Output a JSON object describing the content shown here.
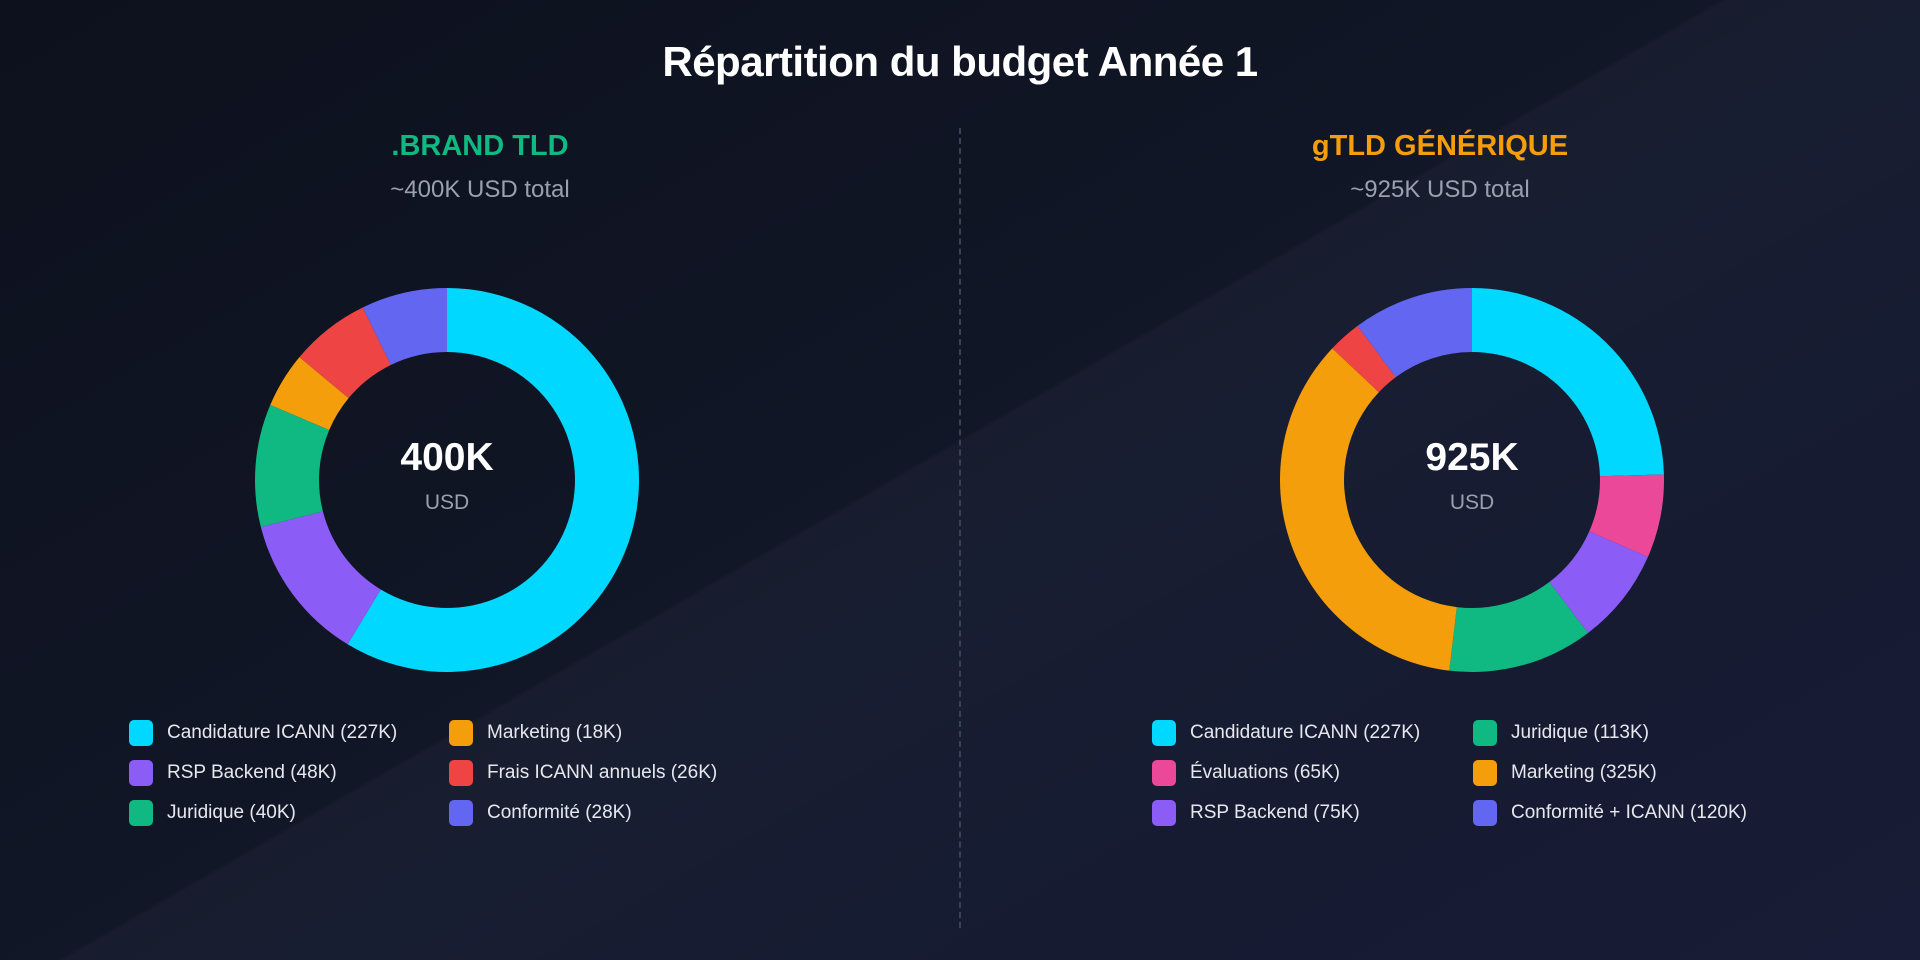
{
  "title": "Répartition du budget Année 1",
  "chart_data": [
    {
      "type": "pie",
      "variant": "donut",
      "title": ".BRAND TLD",
      "subtitle": "~400K USD total",
      "title_color": "#10b981",
      "center_value": "400K",
      "center_unit": "USD",
      "slices": [
        {
          "name": "Candidature ICANN",
          "value": 227,
          "color": "#00d8ff"
        },
        {
          "name": "RSP Backend",
          "value": 48,
          "color": "#8b5cf6"
        },
        {
          "name": "Juridique",
          "value": 40,
          "color": "#10b981"
        },
        {
          "name": "Marketing",
          "value": 18,
          "color": "#f59e0b"
        },
        {
          "name": "Frais ICANN annuels",
          "value": 26,
          "color": "#ef4444"
        },
        {
          "name": "Conformité",
          "value": 28,
          "color": "#6366f1"
        }
      ],
      "legend": [
        {
          "label": "Candidature ICANN (227K)",
          "color": "#00d8ff"
        },
        {
          "label": "RSP Backend (48K)",
          "color": "#8b5cf6"
        },
        {
          "label": "Juridique (40K)",
          "color": "#10b981"
        },
        {
          "label": "Marketing (18K)",
          "color": "#f59e0b"
        },
        {
          "label": "Frais ICANN annuels (26K)",
          "color": "#ef4444"
        },
        {
          "label": "Conformité (28K)",
          "color": "#6366f1"
        }
      ]
    },
    {
      "type": "pie",
      "variant": "donut",
      "title": "gTLD GÉNÉRIQUE",
      "subtitle": "~925K USD total",
      "title_color": "#f59e0b",
      "center_value": "925K",
      "center_unit": "USD",
      "slices": [
        {
          "name": "Candidature ICANN",
          "value": 227,
          "color": "#00d8ff"
        },
        {
          "name": "Évaluations",
          "value": 65,
          "color": "#ec4899"
        },
        {
          "name": "RSP Backend",
          "value": 75,
          "color": "#8b5cf6"
        },
        {
          "name": "Juridique",
          "value": 113,
          "color": "#10b981"
        },
        {
          "name": "Marketing",
          "value": 325,
          "color": "#f59e0b"
        },
        {
          "name": "",
          "value": 26,
          "color": "#ef4444"
        },
        {
          "name": "Conformité + ICANN",
          "value": 94,
          "color": "#6366f1"
        }
      ],
      "legend": [
        {
          "label": "Candidature ICANN (227K)",
          "color": "#00d8ff"
        },
        {
          "label": "Évaluations (65K)",
          "color": "#ec4899"
        },
        {
          "label": "RSP Backend (75K)",
          "color": "#8b5cf6"
        },
        {
          "label": "Juridique (113K)",
          "color": "#10b981"
        },
        {
          "label": "Marketing (325K)",
          "color": "#f59e0b"
        },
        {
          "label": "Conformité + ICANN (120K)",
          "color": "#6366f1"
        }
      ]
    }
  ]
}
